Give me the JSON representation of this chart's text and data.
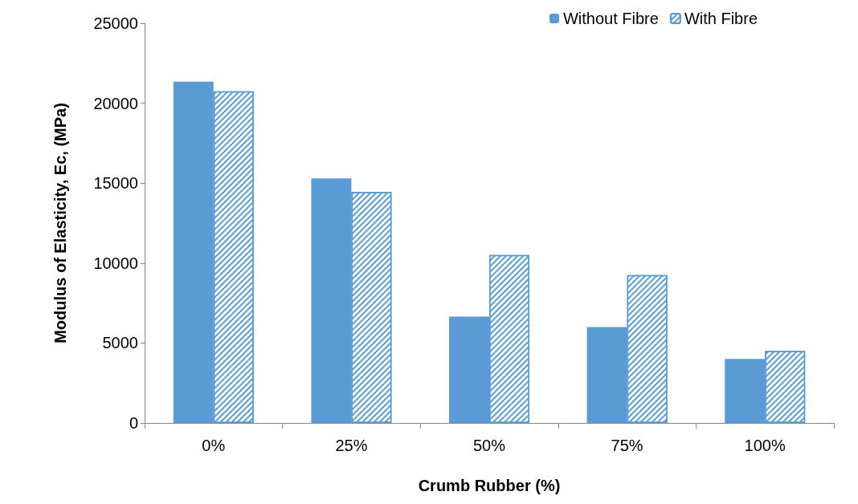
{
  "chart_data": {
    "type": "bar",
    "xlabel": "Crumb Rubber (%)",
    "ylabel": "Modulus of Elasticity, Ec, (MPa)",
    "categories": [
      "0%",
      "25%",
      "50%",
      "75%",
      "100%"
    ],
    "series": [
      {
        "name": "Without Fibre",
        "color": "#5b9bd5",
        "values": [
          21350,
          15300,
          6650,
          6000,
          4000
        ]
      },
      {
        "name": "With Fibre",
        "color": "#5b9bd5",
        "values": [
          20750,
          14450,
          10500,
          9250,
          4500
        ]
      }
    ],
    "ylim": [
      0,
      25000
    ],
    "yticks": [
      0,
      5000,
      10000,
      15000,
      20000,
      25000
    ],
    "grid": false,
    "legend": "top right"
  }
}
